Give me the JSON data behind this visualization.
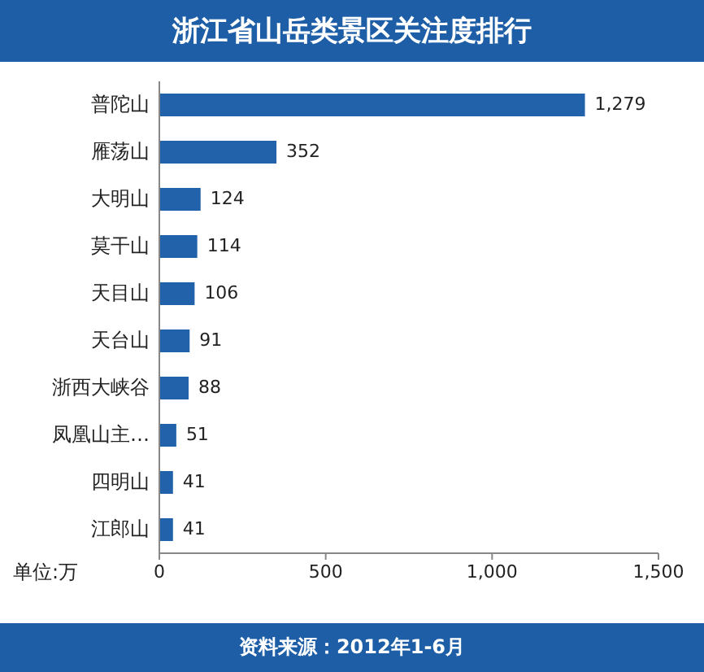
{
  "chart_data": {
    "type": "bar",
    "orientation": "horizontal",
    "title": "浙江省山岳类景区关注度排行",
    "categories": [
      "普陀山",
      "雁荡山",
      "大明山",
      "莫干山",
      "天目山",
      "天台山",
      "浙西大峡谷",
      "凤凰山主…",
      "四明山",
      "江郎山"
    ],
    "values": [
      1279,
      352,
      124,
      114,
      106,
      91,
      88,
      51,
      41,
      41
    ],
    "value_labels": [
      "1,279",
      "352",
      "124",
      "114",
      "106",
      "91",
      "88",
      "51",
      "41",
      "41"
    ],
    "color": "#2262aa",
    "xlim": [
      0,
      1500
    ],
    "xticks": [
      0,
      500,
      {
        "value": 1000,
        "label": "1,000"
      },
      {
        "value": 1500,
        "label": "1,500"
      }
    ],
    "annotations": [
      "单位:万",
      "资料来源：2012年1-6月"
    ]
  }
}
